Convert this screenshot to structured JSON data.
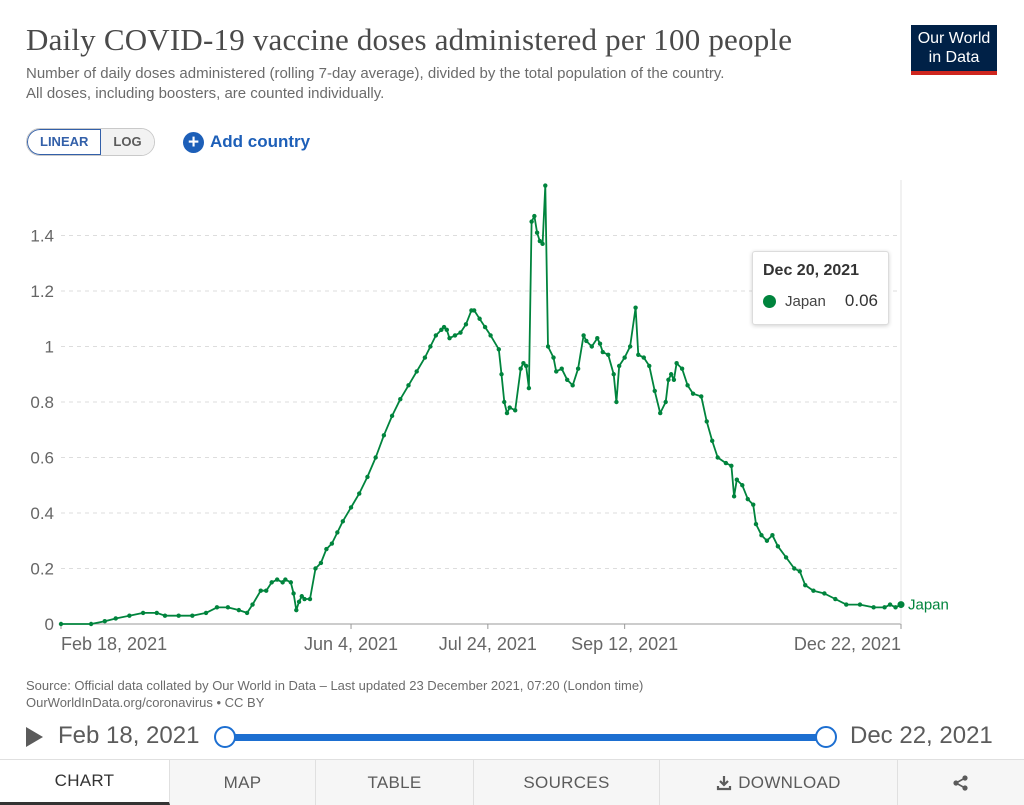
{
  "header": {
    "title": "Daily COVID-19 vaccine doses administered per 100 people",
    "subtitle_line1": "Number of daily doses administered (rolling 7-day average), divided by the total population of the country.",
    "subtitle_line2": "All doses, including boosters, are counted individually.",
    "logo_line1": "Our World",
    "logo_line2": "in Data"
  },
  "controls": {
    "linear_label": "LINEAR",
    "log_label": "LOG",
    "add_country_label": "Add country"
  },
  "tooltip": {
    "date": "Dec 20, 2021",
    "series": "Japan",
    "value": "0.06"
  },
  "source": {
    "line1": "Source: Official data collated by Our World in Data – Last updated 23 December 2021, 07:20 (London time)",
    "line2": "OurWorldInData.org/coronavirus • CC BY"
  },
  "timeline": {
    "start_label": "Feb 18, 2021",
    "end_label": "Dec 22, 2021"
  },
  "tabs": [
    "CHART",
    "MAP",
    "TABLE",
    "SOURCES",
    "DOWNLOAD",
    ""
  ],
  "colors": {
    "series": "#00843d",
    "accent": "#1d6fd1",
    "logo_bg": "#002147",
    "logo_stripe": "#ce261e"
  },
  "chart_data": {
    "type": "line",
    "ylim": [
      0,
      1.6
    ],
    "yticks": [
      0,
      0.2,
      0.4,
      0.6,
      0.8,
      1,
      1.2,
      1.4
    ],
    "ytick_labels": [
      "0",
      "0.2",
      "0.4",
      "0.6",
      "0.8",
      "1",
      "1.2",
      "1.4"
    ],
    "xlim": [
      "2021-02-18",
      "2021-12-22"
    ],
    "xticks": [
      "2021-02-18",
      "2021-06-04",
      "2021-07-24",
      "2021-09-12",
      "2021-12-22"
    ],
    "xtick_labels": [
      "Feb 18, 2021",
      "Jun 4, 2021",
      "Jul 24, 2021",
      "Sep 12, 2021",
      "Dec 22, 2021"
    ],
    "grid": true,
    "legend": "end-label",
    "series": [
      {
        "name": "Japan",
        "points": [
          [
            "2021-02-18",
            0.0
          ],
          [
            "2021-03-01",
            0.0
          ],
          [
            "2021-03-06",
            0.01
          ],
          [
            "2021-03-10",
            0.02
          ],
          [
            "2021-03-15",
            0.03
          ],
          [
            "2021-03-20",
            0.04
          ],
          [
            "2021-03-25",
            0.04
          ],
          [
            "2021-03-28",
            0.03
          ],
          [
            "2021-04-02",
            0.03
          ],
          [
            "2021-04-07",
            0.03
          ],
          [
            "2021-04-12",
            0.04
          ],
          [
            "2021-04-16",
            0.06
          ],
          [
            "2021-04-20",
            0.06
          ],
          [
            "2021-04-24",
            0.05
          ],
          [
            "2021-04-27",
            0.04
          ],
          [
            "2021-04-29",
            0.07
          ],
          [
            "2021-05-02",
            0.12
          ],
          [
            "2021-05-04",
            0.12
          ],
          [
            "2021-05-06",
            0.15
          ],
          [
            "2021-05-08",
            0.16
          ],
          [
            "2021-05-10",
            0.15
          ],
          [
            "2021-05-11",
            0.16
          ],
          [
            "2021-05-13",
            0.15
          ],
          [
            "2021-05-14",
            0.11
          ],
          [
            "2021-05-15",
            0.05
          ],
          [
            "2021-05-16",
            0.08
          ],
          [
            "2021-05-17",
            0.1
          ],
          [
            "2021-05-18",
            0.09
          ],
          [
            "2021-05-20",
            0.09
          ],
          [
            "2021-05-22",
            0.2
          ],
          [
            "2021-05-24",
            0.22
          ],
          [
            "2021-05-26",
            0.27
          ],
          [
            "2021-05-28",
            0.29
          ],
          [
            "2021-05-30",
            0.33
          ],
          [
            "2021-06-01",
            0.37
          ],
          [
            "2021-06-04",
            0.42
          ],
          [
            "2021-06-07",
            0.47
          ],
          [
            "2021-06-10",
            0.53
          ],
          [
            "2021-06-13",
            0.6
          ],
          [
            "2021-06-16",
            0.68
          ],
          [
            "2021-06-19",
            0.75
          ],
          [
            "2021-06-22",
            0.81
          ],
          [
            "2021-06-25",
            0.86
          ],
          [
            "2021-06-28",
            0.91
          ],
          [
            "2021-07-01",
            0.96
          ],
          [
            "2021-07-03",
            1.0
          ],
          [
            "2021-07-05",
            1.04
          ],
          [
            "2021-07-07",
            1.06
          ],
          [
            "2021-07-08",
            1.07
          ],
          [
            "2021-07-09",
            1.06
          ],
          [
            "2021-07-10",
            1.03
          ],
          [
            "2021-07-12",
            1.04
          ],
          [
            "2021-07-14",
            1.05
          ],
          [
            "2021-07-16",
            1.08
          ],
          [
            "2021-07-18",
            1.13
          ],
          [
            "2021-07-19",
            1.13
          ],
          [
            "2021-07-21",
            1.1
          ],
          [
            "2021-07-23",
            1.07
          ],
          [
            "2021-07-25",
            1.04
          ],
          [
            "2021-07-28",
            0.99
          ],
          [
            "2021-07-29",
            0.9
          ],
          [
            "2021-07-30",
            0.8
          ],
          [
            "2021-07-31",
            0.76
          ],
          [
            "2021-08-01",
            0.78
          ],
          [
            "2021-08-03",
            0.77
          ],
          [
            "2021-08-05",
            0.92
          ],
          [
            "2021-08-06",
            0.94
          ],
          [
            "2021-08-07",
            0.93
          ],
          [
            "2021-08-08",
            0.85
          ],
          [
            "2021-08-09",
            1.45
          ],
          [
            "2021-08-10",
            1.47
          ],
          [
            "2021-08-11",
            1.41
          ],
          [
            "2021-08-12",
            1.38
          ],
          [
            "2021-08-13",
            1.37
          ],
          [
            "2021-08-14",
            1.58
          ],
          [
            "2021-08-15",
            1.0
          ],
          [
            "2021-08-17",
            0.96
          ],
          [
            "2021-08-18",
            0.91
          ],
          [
            "2021-08-20",
            0.92
          ],
          [
            "2021-08-22",
            0.88
          ],
          [
            "2021-08-24",
            0.86
          ],
          [
            "2021-08-26",
            0.92
          ],
          [
            "2021-08-28",
            1.04
          ],
          [
            "2021-08-29",
            1.02
          ],
          [
            "2021-08-31",
            1.0
          ],
          [
            "2021-09-02",
            1.03
          ],
          [
            "2021-09-03",
            1.01
          ],
          [
            "2021-09-04",
            0.98
          ],
          [
            "2021-09-06",
            0.97
          ],
          [
            "2021-09-08",
            0.9
          ],
          [
            "2021-09-09",
            0.8
          ],
          [
            "2021-09-10",
            0.93
          ],
          [
            "2021-09-12",
            0.96
          ],
          [
            "2021-09-14",
            1.0
          ],
          [
            "2021-09-16",
            1.14
          ],
          [
            "2021-09-17",
            0.97
          ],
          [
            "2021-09-19",
            0.96
          ],
          [
            "2021-09-21",
            0.93
          ],
          [
            "2021-09-23",
            0.84
          ],
          [
            "2021-09-25",
            0.76
          ],
          [
            "2021-09-27",
            0.8
          ],
          [
            "2021-09-28",
            0.88
          ],
          [
            "2021-09-29",
            0.9
          ],
          [
            "2021-09-30",
            0.88
          ],
          [
            "2021-10-01",
            0.94
          ],
          [
            "2021-10-03",
            0.92
          ],
          [
            "2021-10-05",
            0.86
          ],
          [
            "2021-10-07",
            0.83
          ],
          [
            "2021-10-10",
            0.82
          ],
          [
            "2021-10-12",
            0.73
          ],
          [
            "2021-10-14",
            0.66
          ],
          [
            "2021-10-16",
            0.6
          ],
          [
            "2021-10-19",
            0.58
          ],
          [
            "2021-10-21",
            0.57
          ],
          [
            "2021-10-22",
            0.46
          ],
          [
            "2021-10-23",
            0.52
          ],
          [
            "2021-10-25",
            0.5
          ],
          [
            "2021-10-27",
            0.45
          ],
          [
            "2021-10-29",
            0.43
          ],
          [
            "2021-10-30",
            0.36
          ],
          [
            "2021-11-01",
            0.32
          ],
          [
            "2021-11-03",
            0.3
          ],
          [
            "2021-11-05",
            0.32
          ],
          [
            "2021-11-07",
            0.28
          ],
          [
            "2021-11-10",
            0.24
          ],
          [
            "2021-11-13",
            0.2
          ],
          [
            "2021-11-15",
            0.19
          ],
          [
            "2021-11-17",
            0.14
          ],
          [
            "2021-11-20",
            0.12
          ],
          [
            "2021-11-24",
            0.11
          ],
          [
            "2021-11-28",
            0.09
          ],
          [
            "2021-12-02",
            0.07
          ],
          [
            "2021-12-07",
            0.07
          ],
          [
            "2021-12-12",
            0.06
          ],
          [
            "2021-12-16",
            0.06
          ],
          [
            "2021-12-18",
            0.07
          ],
          [
            "2021-12-20",
            0.06
          ],
          [
            "2021-12-22",
            0.07
          ]
        ]
      }
    ]
  }
}
